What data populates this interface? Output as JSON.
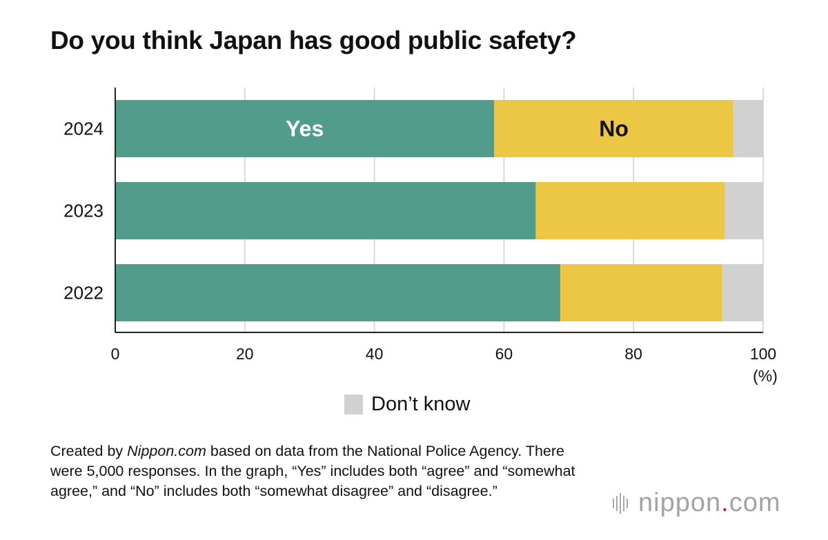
{
  "title": "Do you think Japan has good public safety?",
  "colors": {
    "yes": "#529C8C",
    "no": "#ECC745",
    "dont_know": "#D1D1D1",
    "grid": "#D9D9D9",
    "axis": "#222222",
    "logo_dot": "#C9202A",
    "logo_text": "#A3A3A3"
  },
  "chart_data": {
    "type": "bar",
    "orientation": "horizontal",
    "stacked": true,
    "title": "Do you think Japan has good public safety?",
    "categories": [
      "2024",
      "2023",
      "2022"
    ],
    "series": [
      {
        "name": "Yes",
        "values": [
          58.5,
          64.9,
          68.7
        ]
      },
      {
        "name": "No",
        "values": [
          36.9,
          29.2,
          25.0
        ]
      },
      {
        "name": "Don’t know",
        "values": [
          4.6,
          5.9,
          6.3
        ]
      }
    ],
    "segment_labels": {
      "Yes": "Yes",
      "No": "No"
    },
    "xlim": [
      0,
      100
    ],
    "xticks": [
      "0",
      "20",
      "40",
      "60",
      "80",
      "100"
    ],
    "xunit": "(%)",
    "grid": true,
    "legend": {
      "entries": [
        "Don’t know"
      ],
      "placement": "bottom-center"
    }
  },
  "note": {
    "prefix": "Created by ",
    "source_name": "Nippon.com",
    "rest": " based on data from the National Police Agency. There were 5,000 responses. In the graph, “Yes” includes both “agree” and “somewhat agree,” and “No” includes both “somewhat disagree” and “disagree.”"
  },
  "logo": {
    "name": "nippon",
    "dot": ".",
    "suffix": "com"
  }
}
